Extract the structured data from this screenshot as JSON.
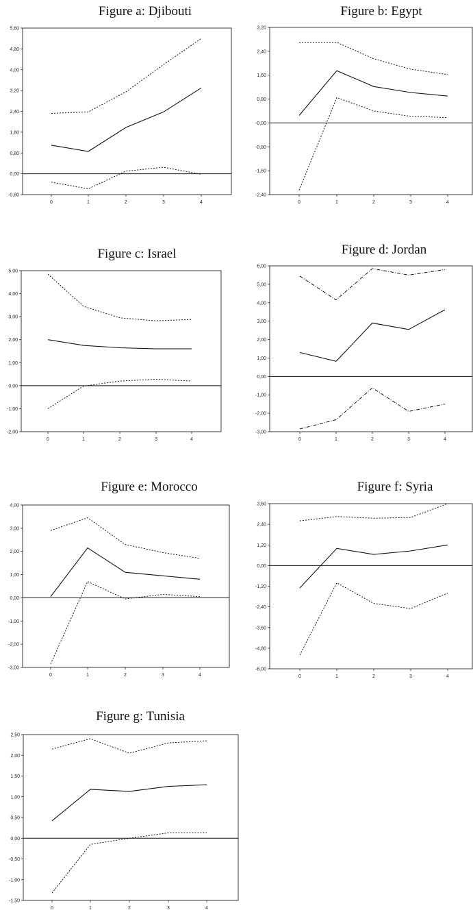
{
  "chart_data": [
    {
      "type": "line",
      "title": "Figure a: Djibouti",
      "x": [
        0,
        1,
        2,
        3,
        4
      ],
      "x_tick_labels": [
        "0",
        "1",
        "2",
        "3",
        "4"
      ],
      "y_tick_labels": [
        "5,60",
        "4,80",
        "4,00",
        "3,20",
        "2,40",
        "1,60",
        "0,80",
        "0,00",
        "-0,80"
      ],
      "ylim": [
        -0.8,
        5.6
      ],
      "band_style": "dotted",
      "series": [
        {
          "style": "solid",
          "values": [
            1.1,
            0.86,
            1.78,
            2.38,
            3.3
          ]
        },
        {
          "style": "dotted",
          "values": [
            2.32,
            2.38,
            3.15,
            4.2,
            5.2
          ]
        },
        {
          "style": "dotted",
          "values": [
            -0.32,
            -0.58,
            0.1,
            0.25,
            -0.02
          ]
        }
      ]
    },
    {
      "type": "line",
      "title": "Figure b: Egypt",
      "x": [
        0,
        1,
        2,
        3,
        4
      ],
      "x_tick_labels": [
        "0",
        "1",
        "2",
        "3",
        "4"
      ],
      "y_tick_labels": [
        "3,20",
        "2,40",
        "1,60",
        "0,80",
        "-0,00",
        "-0,80",
        "-1,60",
        "-2,40"
      ],
      "ylim": [
        -2.4,
        3.2
      ],
      "band_style": "dotted",
      "series": [
        {
          "style": "solid",
          "values": [
            0.25,
            1.75,
            1.22,
            1.02,
            0.9
          ]
        },
        {
          "style": "dotted",
          "values": [
            2.7,
            2.7,
            2.15,
            1.8,
            1.62
          ]
        },
        {
          "style": "dotted",
          "values": [
            -2.25,
            0.85,
            0.4,
            0.22,
            0.18
          ]
        }
      ]
    },
    {
      "type": "line",
      "title": "Figure c: Israel",
      "x": [
        0,
        1,
        2,
        3,
        4
      ],
      "x_tick_labels": [
        "0",
        "1",
        "2",
        "3",
        "4"
      ],
      "y_tick_labels": [
        "5,00",
        "4,00",
        "3,00",
        "2,00",
        "1,00",
        "0,00",
        "-1,00",
        "-2,00"
      ],
      "ylim": [
        -2.0,
        5.0
      ],
      "band_style": "dotted",
      "series": [
        {
          "style": "solid",
          "values": [
            2.0,
            1.75,
            1.65,
            1.6,
            1.6
          ]
        },
        {
          "style": "dotted",
          "values": [
            4.85,
            3.45,
            2.95,
            2.82,
            2.88
          ]
        },
        {
          "style": "dotted",
          "values": [
            -1.0,
            -0.02,
            0.2,
            0.28,
            0.2
          ]
        }
      ]
    },
    {
      "type": "line",
      "title": "Figure d: Jordan",
      "x": [
        0,
        1,
        2,
        3,
        4
      ],
      "x_tick_labels": [
        "0",
        "1",
        "2",
        "3",
        "4"
      ],
      "y_tick_labels": [
        "6,00",
        "5,00",
        "4,00",
        "3,00",
        "2,00",
        "1,00",
        "0,00",
        "-1,00",
        "-2,00",
        "-3,00"
      ],
      "ylim": [
        -3.0,
        6.0
      ],
      "band_style": "dashdot",
      "series": [
        {
          "style": "solid",
          "values": [
            1.3,
            0.82,
            2.9,
            2.55,
            3.62
          ]
        },
        {
          "style": "dashdot",
          "values": [
            5.45,
            4.15,
            5.85,
            5.5,
            5.8
          ]
        },
        {
          "style": "dashdot",
          "values": [
            -2.85,
            -2.35,
            -0.62,
            -1.9,
            -1.5
          ]
        }
      ]
    },
    {
      "type": "line",
      "title": "Figure e: Morocco",
      "x": [
        0,
        1,
        2,
        3,
        4
      ],
      "x_tick_labels": [
        "0",
        "1",
        "2",
        "3",
        "4"
      ],
      "y_tick_labels": [
        "4,00",
        "3,00",
        "2,00",
        "1,00",
        "0,00",
        "-1,00",
        "-2,00",
        "-3,00"
      ],
      "ylim": [
        -3.0,
        4.0
      ],
      "band_style": "dotted",
      "series": [
        {
          "style": "solid",
          "values": [
            0.05,
            2.15,
            1.1,
            0.95,
            0.8
          ]
        },
        {
          "style": "dotted",
          "values": [
            2.9,
            3.45,
            2.3,
            1.95,
            1.7
          ]
        },
        {
          "style": "dotted",
          "values": [
            -2.85,
            0.7,
            -0.05,
            0.15,
            0.05
          ]
        }
      ]
    },
    {
      "type": "line",
      "title": "Figure f: Syria",
      "x": [
        0,
        1,
        2,
        3,
        4
      ],
      "x_tick_labels": [
        "0",
        "1",
        "2",
        "3",
        "4"
      ],
      "y_tick_labels": [
        "3,60",
        "2,40",
        "1,20",
        "0,00",
        "-1,20",
        "-2,40",
        "-3,60",
        "-4,80",
        "-6,00"
      ],
      "ylim": [
        -6.0,
        3.6
      ],
      "band_style": "dotted",
      "series": [
        {
          "style": "solid",
          "values": [
            -1.3,
            1.0,
            0.65,
            0.85,
            1.2
          ]
        },
        {
          "style": "dotted",
          "values": [
            2.6,
            2.85,
            2.75,
            2.8,
            3.6
          ]
        },
        {
          "style": "dotted",
          "values": [
            -5.2,
            -1.0,
            -2.2,
            -2.5,
            -1.6
          ]
        }
      ]
    },
    {
      "type": "line",
      "title": "Figure g: Tunisia",
      "x": [
        0,
        1,
        2,
        3,
        4
      ],
      "x_tick_labels": [
        "0",
        "1",
        "2",
        "3",
        "4"
      ],
      "y_tick_labels": [
        "2,50",
        "2,00",
        "1,50",
        "1,00",
        "0,50",
        "0,00",
        "-0,50",
        "-1,00",
        "-1,50"
      ],
      "ylim": [
        -1.5,
        2.5
      ],
      "band_style": "dotted",
      "series": [
        {
          "style": "solid",
          "values": [
            0.42,
            1.18,
            1.13,
            1.25,
            1.29
          ]
        },
        {
          "style": "dotted",
          "values": [
            2.15,
            2.4,
            2.05,
            2.3,
            2.35
          ]
        },
        {
          "style": "dotted",
          "values": [
            -1.32,
            -0.15,
            0.0,
            0.13,
            0.13
          ]
        }
      ]
    }
  ]
}
